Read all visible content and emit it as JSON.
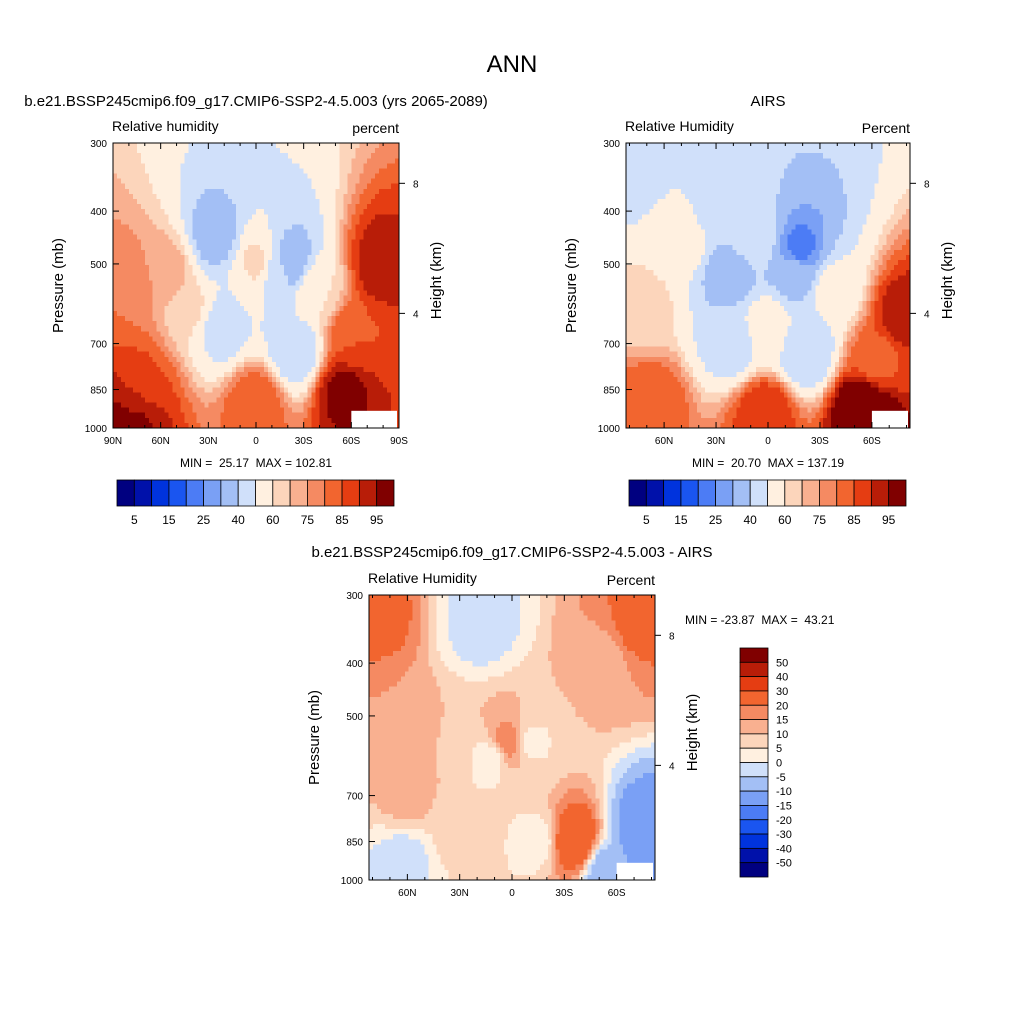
{
  "figure": {
    "main_title": "ANN"
  },
  "chart_data": [
    {
      "type": "heatmap",
      "title": "b.e21.BSSP245cmip6.f09_g17.CMIP6-SSP2-4.5.003 (yrs 2065-2089)",
      "left_label": "Relative humidity",
      "right_label": "percent",
      "ylabel": "Pressure (mb)",
      "y2label": "Height (km)",
      "y_ticks": [
        "300",
        "400",
        "500",
        "700",
        "850",
        "1000"
      ],
      "y2_ticks": [
        "8",
        "4"
      ],
      "x_ticks": [
        "90N",
        "60N",
        "30N",
        "0",
        "30S",
        "60S",
        "90S"
      ],
      "x_range": [
        90,
        -90
      ],
      "y_range": [
        300,
        1000
      ],
      "stats": "MIN =  25.17  MAX = 102.81",
      "levels": [
        5,
        10,
        15,
        20,
        25,
        30,
        40,
        50,
        60,
        65,
        70,
        75,
        80,
        85,
        90,
        95
      ],
      "colorbar_labels": [
        "5",
        "15",
        "25",
        "40",
        "60",
        "75",
        "85",
        "95"
      ],
      "colors": [
        "#000080",
        "#0011aa",
        "#0033dd",
        "#1a55f0",
        "#4c7cf5",
        "#7aa0f5",
        "#a3bff5",
        "#d0e0fa",
        "#fff0e0",
        "#fcd5bb",
        "#f9b090",
        "#f58a62",
        "#f2652f",
        "#e53d12",
        "#b81d08",
        "#800000"
      ],
      "regions": [
        {
          "lat": 80,
          "p": 970,
          "v": 95
        },
        {
          "lat": 78,
          "p": 900,
          "v": 88
        },
        {
          "lat": 72,
          "p": 820,
          "v": 80
        },
        {
          "lat": 80,
          "p": 560,
          "v": 75
        },
        {
          "lat": 55,
          "p": 520,
          "v": 68
        },
        {
          "lat": 42,
          "p": 600,
          "v": 62
        },
        {
          "lat": 25,
          "p": 450,
          "v": 34
        },
        {
          "lat": 22,
          "p": 650,
          "v": 45
        },
        {
          "lat": 12,
          "p": 560,
          "v": 50
        },
        {
          "lat": 0,
          "p": 500,
          "v": 63
        },
        {
          "lat": 0,
          "p": 900,
          "v": 80
        },
        {
          "lat": -12,
          "p": 520,
          "v": 47
        },
        {
          "lat": -22,
          "p": 500,
          "v": 32
        },
        {
          "lat": -25,
          "p": 720,
          "v": 42
        },
        {
          "lat": -38,
          "p": 560,
          "v": 60
        },
        {
          "lat": -55,
          "p": 860,
          "v": 92
        },
        {
          "lat": -60,
          "p": 680,
          "v": 80
        },
        {
          "lat": -78,
          "p": 500,
          "v": 88
        }
      ]
    },
    {
      "type": "heatmap",
      "title": "AIRS",
      "left_label": "Relative Humidity",
      "right_label": "Percent",
      "ylabel": "Pressure (mb)",
      "y2label": "Height (km)",
      "y_ticks": [
        "300",
        "400",
        "500",
        "700",
        "850",
        "1000"
      ],
      "y2_ticks": [
        "8",
        "4"
      ],
      "x_ticks": [
        "60N",
        "30N",
        "0",
        "30S",
        "60S"
      ],
      "x_range": [
        82,
        -82
      ],
      "y_range": [
        300,
        1000
      ],
      "stats": "MIN =  20.70  MAX = 137.19",
      "levels": [
        5,
        10,
        15,
        20,
        25,
        30,
        40,
        50,
        60,
        65,
        70,
        75,
        80,
        85,
        90,
        95
      ],
      "colorbar_labels": [
        "5",
        "15",
        "25",
        "40",
        "60",
        "75",
        "85",
        "95"
      ],
      "colors": [
        "#000080",
        "#0011aa",
        "#0033dd",
        "#1a55f0",
        "#4c7cf5",
        "#7aa0f5",
        "#a3bff5",
        "#d0e0fa",
        "#fff0e0",
        "#fcd5bb",
        "#f9b090",
        "#f58a62",
        "#f2652f",
        "#e53d12",
        "#b81d08",
        "#800000"
      ],
      "regions": [
        {
          "lat": 78,
          "p": 330,
          "v": 42
        },
        {
          "lat": 72,
          "p": 600,
          "v": 62
        },
        {
          "lat": 68,
          "p": 900,
          "v": 80
        },
        {
          "lat": 50,
          "p": 450,
          "v": 58
        },
        {
          "lat": 30,
          "p": 400,
          "v": 45
        },
        {
          "lat": 22,
          "p": 520,
          "v": 33
        },
        {
          "lat": 20,
          "p": 700,
          "v": 45
        },
        {
          "lat": 8,
          "p": 450,
          "v": 48
        },
        {
          "lat": 0,
          "p": 650,
          "v": 57
        },
        {
          "lat": 2,
          "p": 930,
          "v": 85
        },
        {
          "lat": -15,
          "p": 520,
          "v": 35
        },
        {
          "lat": -18,
          "p": 470,
          "v": 23
        },
        {
          "lat": -22,
          "p": 720,
          "v": 40
        },
        {
          "lat": -38,
          "p": 560,
          "v": 55
        },
        {
          "lat": -55,
          "p": 920,
          "v": 100
        },
        {
          "lat": -62,
          "p": 750,
          "v": 78
        },
        {
          "lat": -78,
          "p": 620,
          "v": 88
        }
      ]
    },
    {
      "type": "heatmap",
      "title": "b.e21.BSSP245cmip6.f09_g17.CMIP6-SSP2-4.5.003 - AIRS",
      "left_label": "Relative Humidity",
      "right_label": "Percent",
      "ylabel": "Pressure (mb)",
      "y2label": "Height (km)",
      "y_ticks": [
        "300",
        "400",
        "500",
        "700",
        "850",
        "1000"
      ],
      "y2_ticks": [
        "8",
        "4"
      ],
      "x_ticks": [
        "60N",
        "30N",
        "0",
        "30S",
        "60S"
      ],
      "x_range": [
        82,
        -82
      ],
      "y_range": [
        300,
        1000
      ],
      "stats": "MIN = -23.87  MAX =  43.21",
      "levels": [
        -50,
        -40,
        -30,
        -20,
        -15,
        -10,
        -5,
        0,
        5,
        10,
        15,
        20,
        30,
        40,
        50
      ],
      "colorbar_labels": [
        "50",
        "40",
        "30",
        "20",
        "15",
        "10",
        "5",
        "0",
        "-5",
        "-10",
        "-15",
        "-20",
        "-30",
        "-40",
        "-50"
      ],
      "colors": [
        "#000080",
        "#0011aa",
        "#0033dd",
        "#1a55f0",
        "#4c7cf5",
        "#7aa0f5",
        "#a3bff5",
        "#d0e0fa",
        "#fff0e0",
        "#fcd5bb",
        "#f9b090",
        "#f58a62",
        "#f2652f",
        "#e53d12",
        "#b81d08",
        "#800000"
      ],
      "regions": [
        {
          "lat": 78,
          "p": 330,
          "v": 22
        },
        {
          "lat": 72,
          "p": 500,
          "v": 15
        },
        {
          "lat": 60,
          "p": 700,
          "v": 12
        },
        {
          "lat": 40,
          "p": 560,
          "v": 10
        },
        {
          "lat": 30,
          "p": 820,
          "v": 7
        },
        {
          "lat": 18,
          "p": 340,
          "v": -2
        },
        {
          "lat": 12,
          "p": 600,
          "v": 3
        },
        {
          "lat": 2,
          "p": 560,
          "v": 18
        },
        {
          "lat": -10,
          "p": 560,
          "v": 4
        },
        {
          "lat": -15,
          "p": 850,
          "v": 3
        },
        {
          "lat": -35,
          "p": 850,
          "v": 28
        },
        {
          "lat": -52,
          "p": 400,
          "v": 13
        },
        {
          "lat": -72,
          "p": 340,
          "v": 22
        },
        {
          "lat": -75,
          "p": 800,
          "v": -14
        },
        {
          "lat": -55,
          "p": 970,
          "v": -10
        },
        {
          "lat": 62,
          "p": 920,
          "v": -2
        }
      ]
    }
  ]
}
